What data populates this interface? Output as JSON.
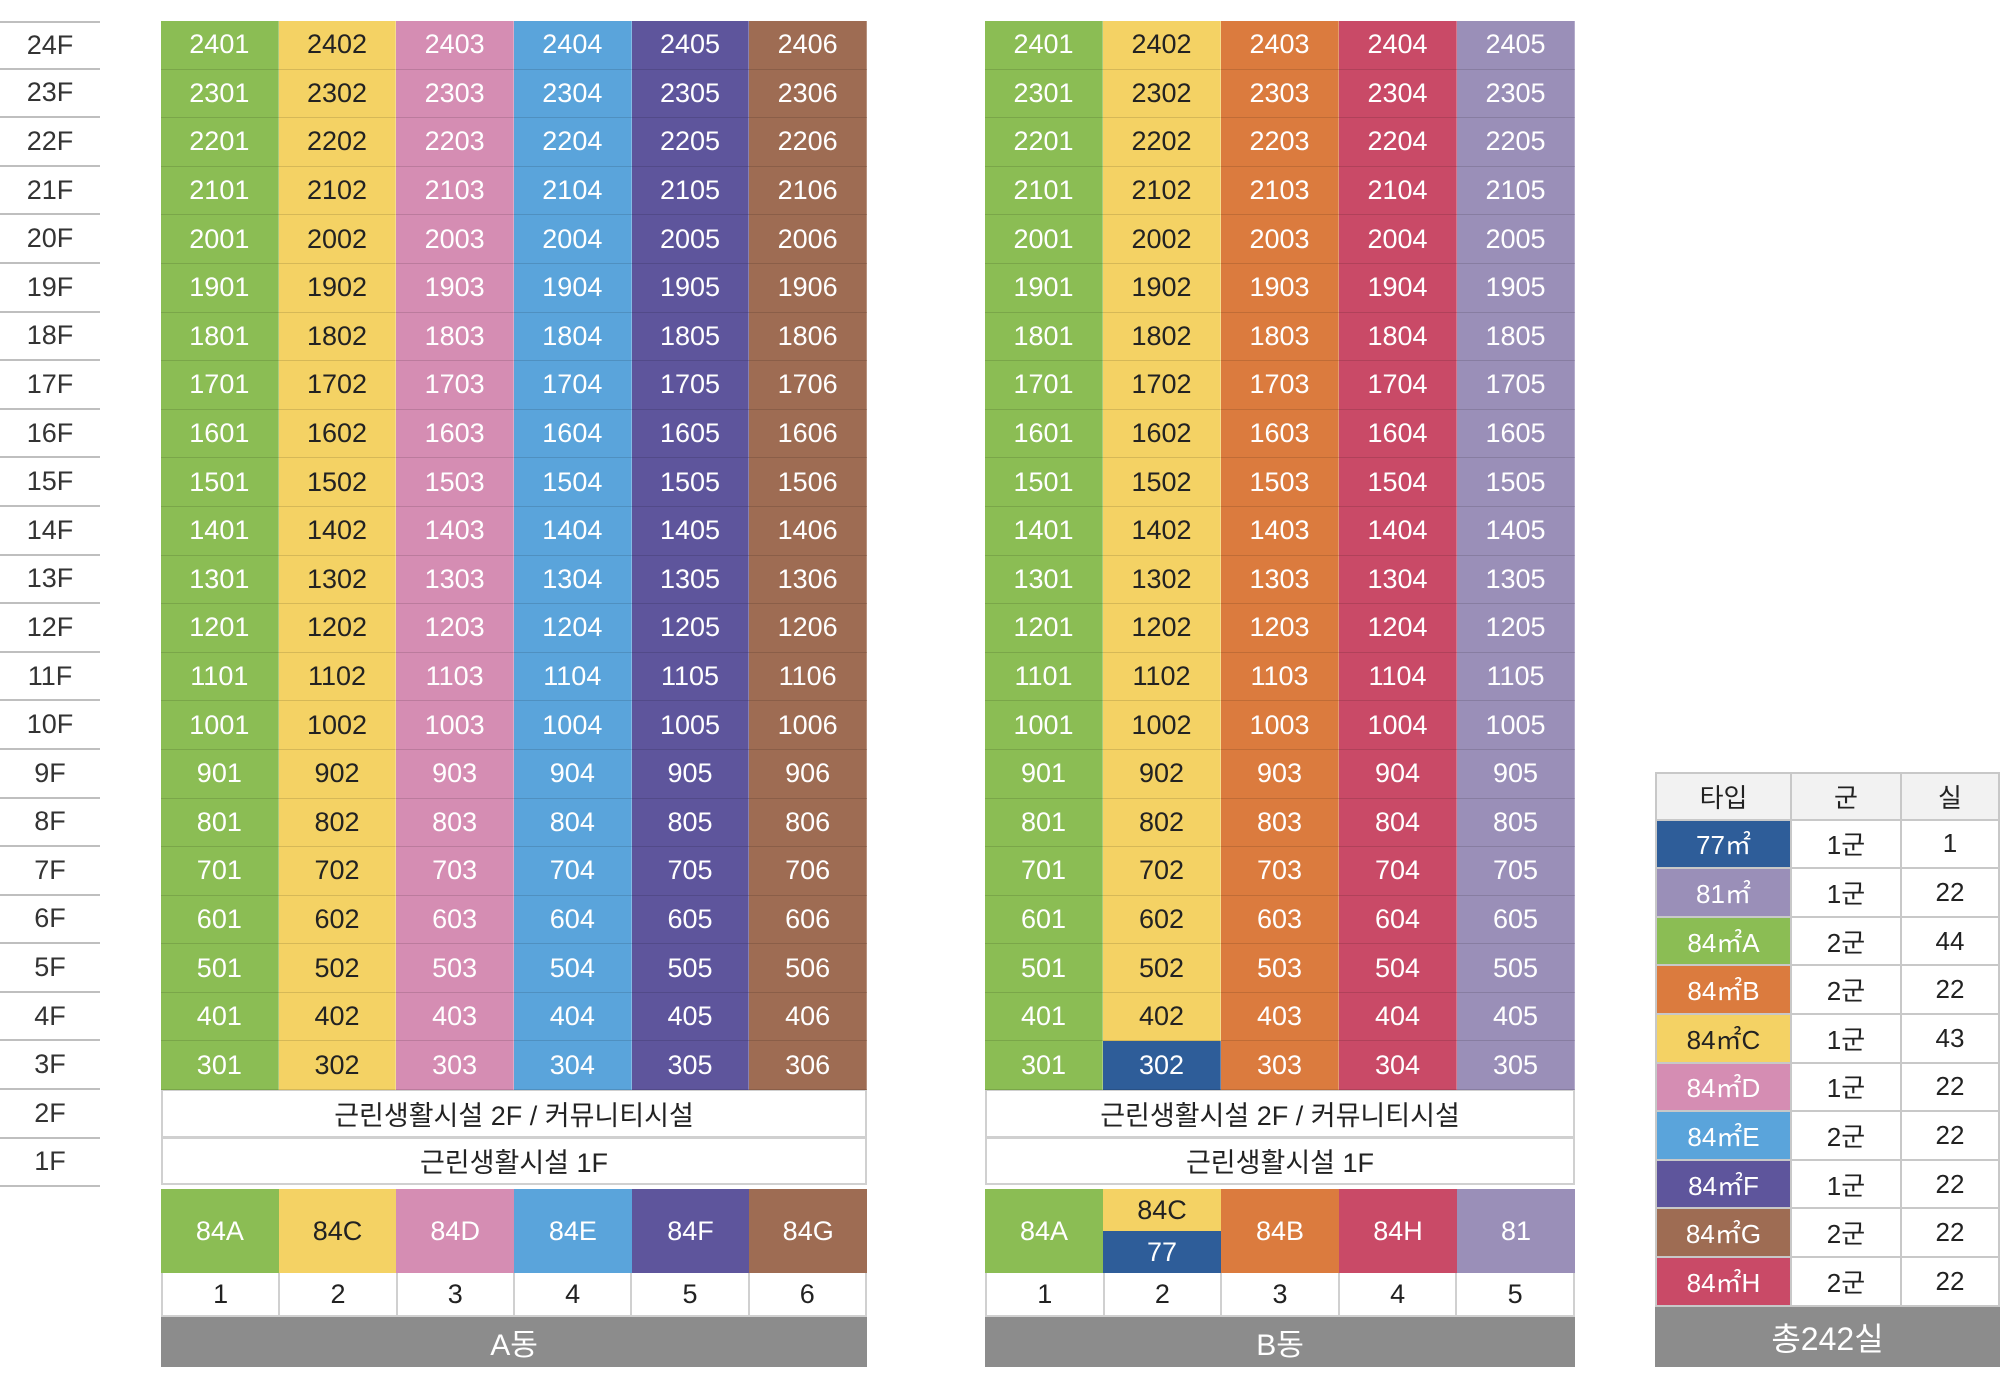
{
  "floors": [
    "24F",
    "23F",
    "22F",
    "21F",
    "20F",
    "19F",
    "18F",
    "17F",
    "16F",
    "15F",
    "14F",
    "13F",
    "12F",
    "11F",
    "10F",
    "9F",
    "8F",
    "7F",
    "6F",
    "5F",
    "4F",
    "3F",
    "2F",
    "1F"
  ],
  "colors": {
    "77": "#2e5d99",
    "81": "#9a8fb8",
    "84A": "#8bbd54",
    "84B": "#db7b3e",
    "84C": "#f4d264",
    "84D": "#d58db3",
    "84E": "#5aa4db",
    "84F": "#5e559c",
    "84G": "#9e6c53",
    "84H": "#c94a67"
  },
  "building_a": {
    "name": "A동",
    "line_types": [
      "84A",
      "84C",
      "84D",
      "84E",
      "84F",
      "84G"
    ],
    "line_numbers": [
      "1",
      "2",
      "3",
      "4",
      "5",
      "6"
    ],
    "type_labels": [
      "84A",
      "84C",
      "84D",
      "84E",
      "84F",
      "84G"
    ],
    "facility_2f": "근린생활시설 2F / 커뮤니티시설",
    "facility_1f": "근린생활시설 1F"
  },
  "building_b": {
    "name": "B동",
    "line_types": [
      "84A",
      "84C",
      "84B",
      "84H",
      "81"
    ],
    "line_numbers": [
      "1",
      "2",
      "3",
      "4",
      "5"
    ],
    "type_labels": [
      "84A",
      "84C",
      "84B",
      "84H",
      "81"
    ],
    "split_label_bottom": "77",
    "override": {
      "unit": "302",
      "type": "77"
    },
    "facility_2f": "근린생활시설 2F / 커뮤니티시설",
    "facility_1f": "근린생활시설 1F"
  },
  "legend": {
    "headers": [
      "타입",
      "군",
      "실"
    ],
    "rows": [
      {
        "key": "77",
        "type": "77㎡",
        "group": "1군",
        "rooms": "1"
      },
      {
        "key": "81",
        "type": "81㎡",
        "group": "1군",
        "rooms": "22"
      },
      {
        "key": "84A",
        "type": "84㎡A",
        "group": "2군",
        "rooms": "44"
      },
      {
        "key": "84B",
        "type": "84㎡B",
        "group": "2군",
        "rooms": "22"
      },
      {
        "key": "84C",
        "type": "84㎡C",
        "group": "1군",
        "rooms": "43"
      },
      {
        "key": "84D",
        "type": "84㎡D",
        "group": "1군",
        "rooms": "22"
      },
      {
        "key": "84E",
        "type": "84㎡E",
        "group": "2군",
        "rooms": "22"
      },
      {
        "key": "84F",
        "type": "84㎡F",
        "group": "1군",
        "rooms": "22"
      },
      {
        "key": "84G",
        "type": "84㎡G",
        "group": "2군",
        "rooms": "22"
      },
      {
        "key": "84H",
        "type": "84㎡H",
        "group": "2군",
        "rooms": "22"
      }
    ],
    "total": "총242실"
  }
}
